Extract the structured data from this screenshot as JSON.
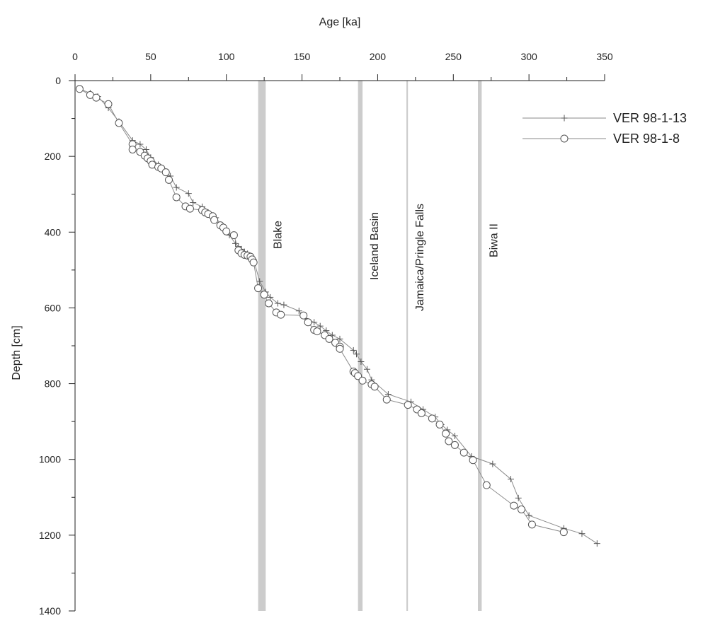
{
  "chart_data": {
    "type": "line",
    "xlabel": "Age [ka]",
    "ylabel": "Depth [cm]",
    "x_axis_position": "top",
    "y_axis_inverted": true,
    "xlim": [
      0,
      350
    ],
    "ylim": [
      0,
      1400
    ],
    "xticks": [
      0,
      50,
      100,
      150,
      200,
      250,
      300,
      350
    ],
    "yticks": [
      0,
      200,
      400,
      600,
      800,
      1000,
      1200,
      1400
    ],
    "grid": false,
    "legend_position": "top-right",
    "series": [
      {
        "name": "VER 98-1-13",
        "marker": "plus",
        "color": "#8a8a8a",
        "x": [
          3,
          10,
          15,
          22,
          29,
          38,
          43,
          47,
          50,
          55,
          58,
          63,
          67,
          75,
          78,
          84,
          88,
          93,
          98,
          102,
          106,
          108,
          110,
          112,
          114,
          116,
          118,
          122,
          126,
          129,
          134,
          138,
          148,
          152,
          158,
          162,
          166,
          170,
          175,
          184,
          186,
          189,
          193,
          196,
          207,
          222,
          230,
          238,
          242,
          246,
          251,
          262,
          276,
          288,
          293,
          300,
          323,
          335,
          345
        ],
        "y": [
          22,
          33,
          42,
          72,
          108,
          158,
          168,
          182,
          203,
          222,
          233,
          252,
          282,
          298,
          322,
          333,
          348,
          362,
          388,
          408,
          430,
          438,
          445,
          452,
          457,
          462,
          472,
          530,
          558,
          572,
          588,
          592,
          608,
          628,
          638,
          648,
          660,
          672,
          682,
          712,
          722,
          742,
          762,
          790,
          828,
          848,
          868,
          888,
          908,
          922,
          938,
          992,
          1012,
          1052,
          1102,
          1148,
          1182,
          1196,
          1222
        ]
      },
      {
        "name": "VER 98-1-8",
        "marker": "circle",
        "color": "#8a8a8a",
        "x": [
          3,
          10,
          14,
          22,
          29,
          38,
          38,
          43,
          46,
          48,
          50,
          51,
          55,
          57,
          60,
          62,
          67,
          73,
          76,
          84,
          86,
          88,
          91,
          92,
          96,
          98,
          100,
          105,
          108,
          110,
          112,
          114,
          116,
          117,
          118,
          121,
          125,
          128,
          133,
          136,
          151,
          154,
          158,
          160,
          165,
          168,
          172,
          175,
          175,
          184,
          185,
          187,
          190,
          196,
          198,
          206,
          220,
          226,
          229,
          236,
          241,
          245,
          247,
          251,
          257,
          263,
          272,
          290,
          295,
          302,
          323
        ],
        "y": [
          22,
          38,
          45,
          62,
          112,
          168,
          182,
          188,
          198,
          205,
          212,
          222,
          228,
          232,
          242,
          262,
          308,
          332,
          338,
          342,
          348,
          352,
          358,
          368,
          382,
          388,
          398,
          408,
          448,
          456,
          460,
          462,
          465,
          472,
          480,
          548,
          565,
          588,
          612,
          618,
          620,
          638,
          658,
          662,
          672,
          682,
          692,
          702,
          708,
          768,
          772,
          780,
          792,
          802,
          808,
          842,
          856,
          868,
          878,
          892,
          908,
          932,
          952,
          962,
          982,
          1002,
          1068,
          1122,
          1132,
          1172,
          1192
        ]
      }
    ],
    "events": [
      {
        "label": "Blake",
        "age": 123.5,
        "width_ka": 5,
        "color": "#cccccc"
      },
      {
        "label": "Iceland Basin",
        "age": 188.5,
        "width_ka": 3,
        "color": "#cccccc"
      },
      {
        "label": "Jamaica/Pringle Falls",
        "age": 219.5,
        "width_ka": 1,
        "color": "#cccccc"
      },
      {
        "label": "Biwa II",
        "age": 267.5,
        "width_ka": 2.5,
        "color": "#cccccc"
      }
    ]
  }
}
